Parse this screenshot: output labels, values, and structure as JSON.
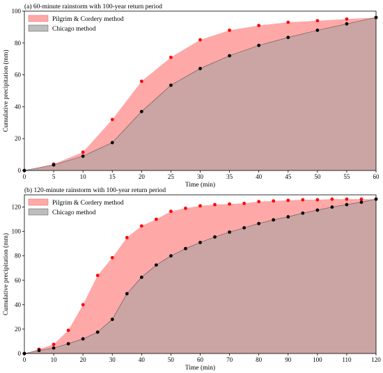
{
  "colors": {
    "pc_fill": "#ff9999",
    "pc_fill_opacity": 0.85,
    "pc_marker": "#ff0000",
    "ch_fill": "#a0a0a0",
    "ch_fill_opacity": 0.55,
    "ch_marker": "#000000",
    "axis": "#000000"
  },
  "chart_data": [
    {
      "type": "area",
      "title": "(a) 60-minute rainstorm with 100-year return period",
      "xlabel": "Time (min)",
      "ylabel": "Cumulative precipitation (mm)",
      "xlim": [
        0,
        60
      ],
      "ylim": [
        0,
        100
      ],
      "xticks": [
        0,
        5,
        10,
        15,
        20,
        25,
        30,
        35,
        40,
        45,
        50,
        55,
        60
      ],
      "yticks": [
        0,
        20,
        40,
        60,
        80,
        100
      ],
      "legend": "top-left",
      "x": [
        0,
        5,
        10,
        15,
        20,
        25,
        30,
        35,
        40,
        45,
        50,
        55,
        60
      ],
      "series": [
        {
          "name": "Pilgrim & Cordery method",
          "values": [
            0,
            4.0,
            11.5,
            32.0,
            56.0,
            71.0,
            82.0,
            88.0,
            91.0,
            93.0,
            94.0,
            95.0,
            96.0
          ]
        },
        {
          "name": "Chicago method",
          "values": [
            0,
            3.5,
            9.0,
            17.5,
            37.0,
            53.5,
            64.0,
            72.0,
            78.5,
            83.5,
            88.0,
            92.0,
            96.0
          ]
        }
      ]
    },
    {
      "type": "area",
      "title": "(b) 120-minute rainstorm with 100-year return period",
      "xlabel": "Time (min)",
      "ylabel": "Cumulative precipitation (mm)",
      "xlim": [
        0,
        120
      ],
      "ylim": [
        0,
        130
      ],
      "xticks": [
        0,
        10,
        20,
        30,
        40,
        50,
        60,
        70,
        80,
        90,
        100,
        110,
        120
      ],
      "yticks": [
        0,
        20,
        40,
        60,
        80,
        100,
        120
      ],
      "legend": "top-left",
      "x": [
        0,
        5,
        10,
        15,
        20,
        25,
        30,
        35,
        40,
        45,
        50,
        55,
        60,
        65,
        70,
        75,
        80,
        85,
        90,
        95,
        100,
        105,
        110,
        115,
        120
      ],
      "series": [
        {
          "name": "Pilgrim & Cordery method",
          "values": [
            0,
            3.5,
            7.5,
            19.0,
            40.0,
            64.0,
            78.5,
            95.0,
            104.5,
            110.0,
            116.5,
            119.0,
            121.0,
            122.0,
            122.5,
            123.0,
            124.5,
            125.0,
            125.5,
            126.0,
            126.0,
            126.5,
            126.5,
            126.5,
            126.5
          ]
        },
        {
          "name": "Chicago method",
          "values": [
            0,
            2.5,
            4.5,
            8.0,
            12.0,
            17.5,
            28.0,
            49.0,
            62.5,
            72.5,
            80.0,
            86.0,
            91.0,
            95.5,
            99.5,
            103.0,
            106.5,
            109.5,
            112.0,
            115.0,
            117.5,
            120.0,
            122.0,
            124.0,
            126.5
          ]
        }
      ]
    }
  ]
}
